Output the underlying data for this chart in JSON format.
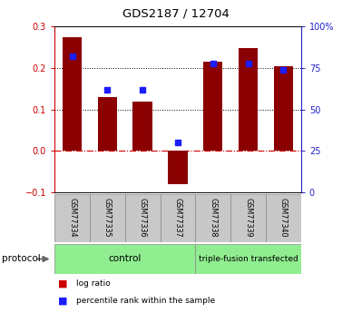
{
  "title": "GDS2187 / 12704",
  "samples": [
    "GSM77334",
    "GSM77335",
    "GSM77336",
    "GSM77337",
    "GSM77338",
    "GSM77339",
    "GSM77340"
  ],
  "log_ratio": [
    0.275,
    0.13,
    0.12,
    -0.08,
    0.215,
    0.248,
    0.205
  ],
  "percentile_rank": [
    82,
    62,
    62,
    30,
    78,
    78,
    74
  ],
  "control_count": 4,
  "bar_color": "#8B0000",
  "dot_color": "#1C1CFF",
  "left_axis_color": "#CC0000",
  "right_axis_color": "#2222CC",
  "ylim_left": [
    -0.1,
    0.3
  ],
  "ylim_right": [
    0,
    100
  ],
  "right_ticks": [
    0,
    25,
    50,
    75,
    100
  ],
  "right_tick_labels": [
    "0",
    "25",
    "50",
    "75",
    "100%"
  ],
  "left_ticks": [
    -0.1,
    0.0,
    0.1,
    0.2,
    0.3
  ],
  "hlines": [
    0.1,
    0.2
  ],
  "zero_line": 0.0,
  "bar_width": 0.55,
  "protocol_label": "protocol",
  "legend_items": [
    {
      "color": "#CC0000",
      "label": "log ratio"
    },
    {
      "color": "#1C1CFF",
      "label": "percentile rank within the sample"
    }
  ],
  "bg_color": "#FFFFFF",
  "plot_bg": "#FFFFFF",
  "tick_label_area_color": "#C8C8C8",
  "group_color": "#90EE90",
  "group_labels": [
    "control",
    "triple-fusion transfected"
  ]
}
